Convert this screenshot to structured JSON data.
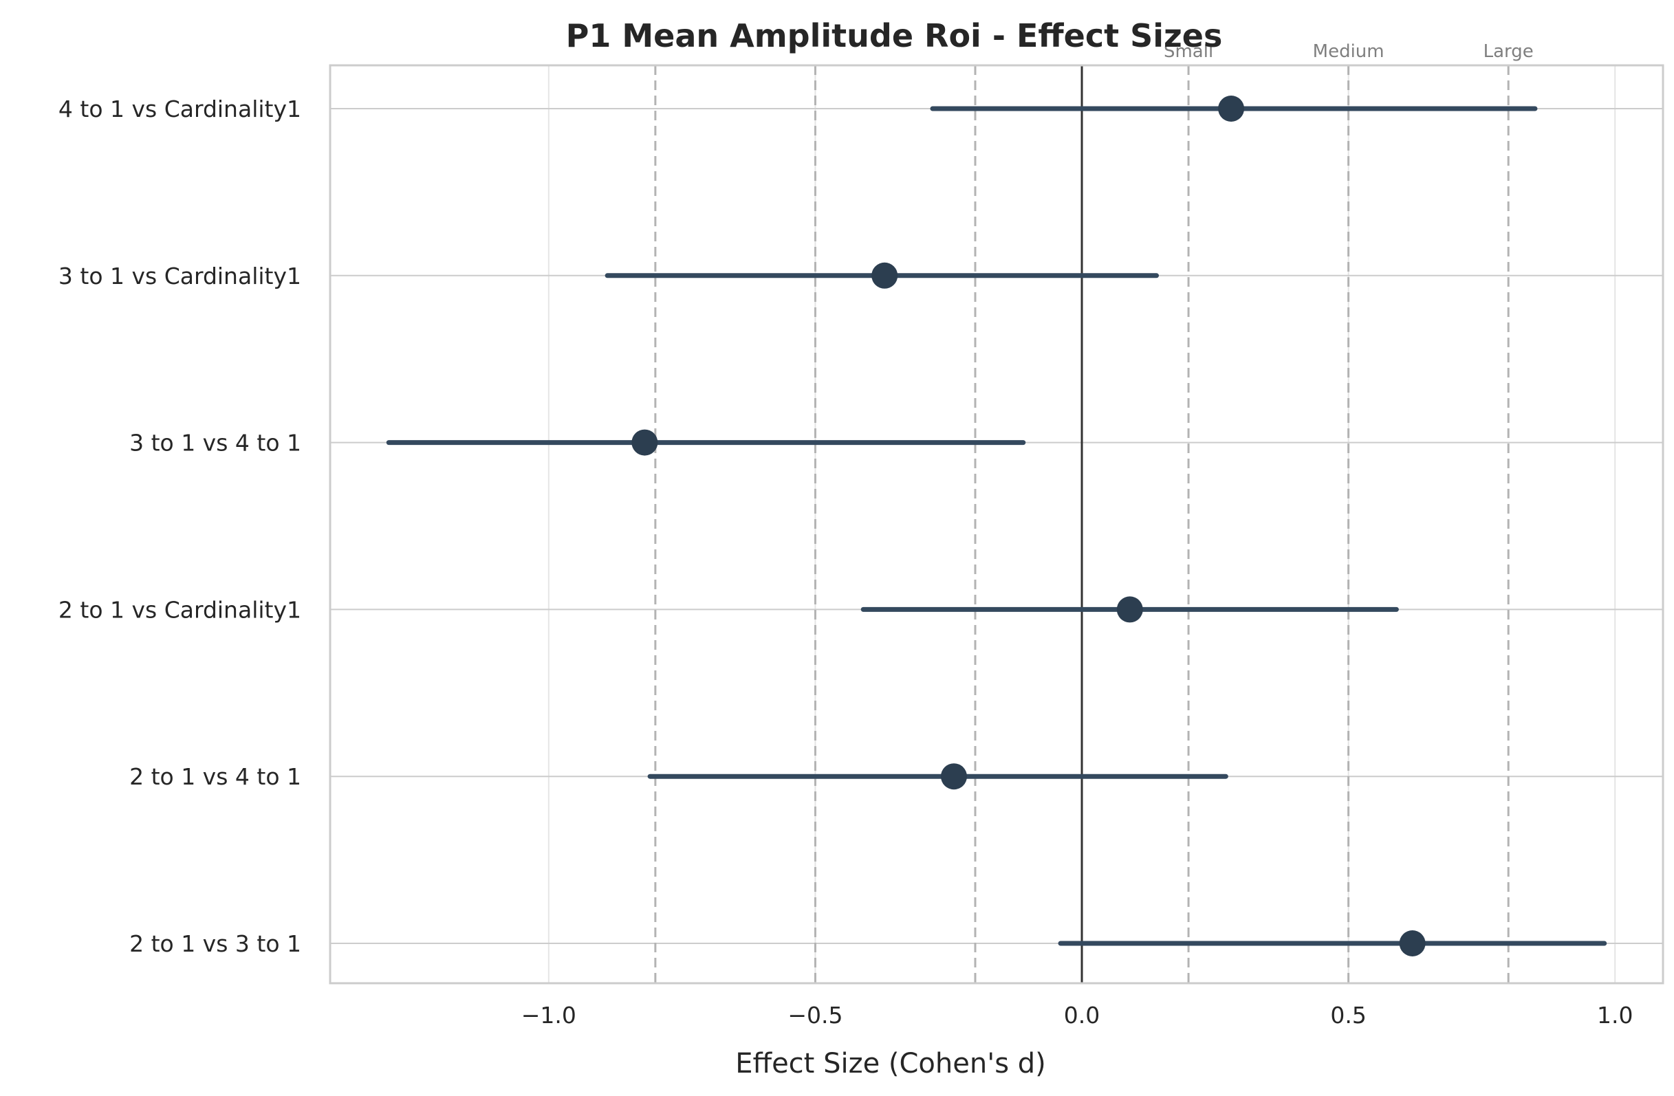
{
  "chart_data": {
    "type": "forest",
    "title": "P1 Mean Amplitude Roi - Effect Sizes",
    "xlabel": "Effect Size (Cohen's d)",
    "ylabel": "",
    "xlim": [
      -1.41,
      1.09
    ],
    "xticks": [
      -1.0,
      -0.5,
      0.0,
      0.5,
      1.0
    ],
    "xtick_labels": [
      "−1.0",
      "−0.5",
      "0.0",
      "0.5",
      "1.0"
    ],
    "grid": true,
    "zero_line": 0.0,
    "thresholds": [
      {
        "value": -0.8,
        "label": ""
      },
      {
        "value": -0.5,
        "label": ""
      },
      {
        "value": -0.2,
        "label": ""
      },
      {
        "value": 0.2,
        "label": "Small"
      },
      {
        "value": 0.5,
        "label": "Medium"
      },
      {
        "value": 0.8,
        "label": "Large"
      }
    ],
    "comparisons": [
      {
        "label": "4 to 1 vs Cardinality1",
        "d": 0.28,
        "ci": [
          -0.28,
          0.85
        ]
      },
      {
        "label": "3 to 1 vs Cardinality1",
        "d": -0.37,
        "ci": [
          -0.89,
          0.14
        ]
      },
      {
        "label": "3 to 1 vs 4 to 1",
        "d": -0.82,
        "ci": [
          -1.3,
          -0.11
        ]
      },
      {
        "label": "2 to 1 vs Cardinality1",
        "d": 0.09,
        "ci": [
          -0.41,
          0.59
        ]
      },
      {
        "label": "2 to 1 vs 4 to 1",
        "d": -0.24,
        "ci": [
          -0.81,
          0.27
        ]
      },
      {
        "label": "2 to 1 vs 3 to 1",
        "d": 0.62,
        "ci": [
          -0.04,
          0.98
        ]
      }
    ],
    "colors": {
      "point": "#2c3e50",
      "ci_line": "#34495e",
      "zero_line": "#333333",
      "threshold_line": "#b3b3b3",
      "grid": "#e5e5e5",
      "frame": "#cccccc"
    }
  }
}
